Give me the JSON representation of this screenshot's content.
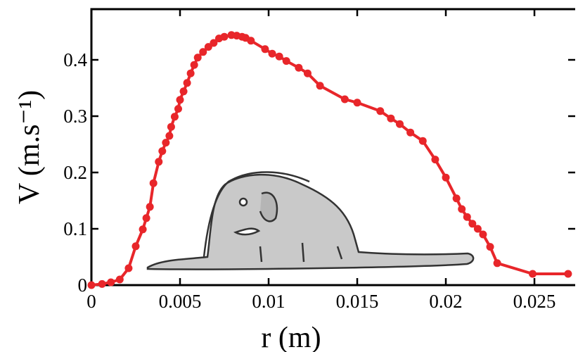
{
  "chart_data": {
    "type": "line",
    "xlabel": "r (m)",
    "ylabel": "V (m.s⁻¹)",
    "x": [
      0,
      0.0006,
      0.0011,
      0.0016,
      0.0021,
      0.0025,
      0.0029,
      0.0031,
      0.0033,
      0.0035,
      0.0038,
      0.004,
      0.0042,
      0.0044,
      0.0045,
      0.0047,
      0.0049,
      0.005,
      0.0052,
      0.0054,
      0.0056,
      0.0058,
      0.006,
      0.0063,
      0.0066,
      0.0069,
      0.0072,
      0.0075,
      0.0079,
      0.0082,
      0.0085,
      0.0087,
      0.009,
      0.0098,
      0.0102,
      0.0106,
      0.011,
      0.0117,
      0.0122,
      0.0129,
      0.0143,
      0.015,
      0.0163,
      0.0169,
      0.0174,
      0.018,
      0.0187,
      0.0194,
      0.02,
      0.0206,
      0.0209,
      0.0212,
      0.0215,
      0.0218,
      0.0221,
      0.0225,
      0.0229,
      0.0249,
      0.0269
    ],
    "series": [
      {
        "color": "#e8262a",
        "values": [
          0,
          0.002,
          0.005,
          0.01,
          0.03,
          0.069,
          0.099,
          0.119,
          0.139,
          0.181,
          0.219,
          0.238,
          0.253,
          0.265,
          0.281,
          0.299,
          0.313,
          0.329,
          0.344,
          0.359,
          0.376,
          0.391,
          0.404,
          0.414,
          0.423,
          0.43,
          0.438,
          0.441,
          0.444,
          0.443,
          0.441,
          0.439,
          0.434,
          0.419,
          0.411,
          0.406,
          0.398,
          0.386,
          0.376,
          0.354,
          0.33,
          0.324,
          0.309,
          0.296,
          0.286,
          0.271,
          0.256,
          0.223,
          0.191,
          0.154,
          0.135,
          0.121,
          0.109,
          0.1,
          0.09,
          0.068,
          0.039,
          0.02,
          0.02
        ]
      }
    ],
    "xlim": [
      0,
      0.0273
    ],
    "xticks": [
      0,
      0.005,
      0.01,
      0.015,
      0.02,
      0.025
    ],
    "ylim": [
      0,
      0.49
    ],
    "yticks": [
      0,
      0.1,
      0.2,
      0.3,
      0.4
    ]
  }
}
